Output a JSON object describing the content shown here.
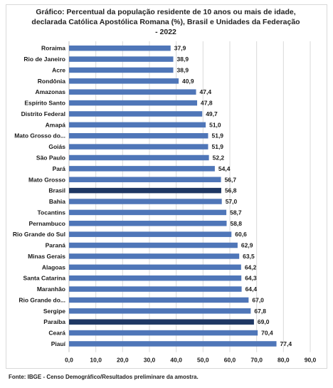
{
  "chart_data": {
    "type": "bar",
    "orientation": "horizontal",
    "title_lines": [
      "Gráfico: Percentual da população residente de 10 anos ou mais de idade,",
      "declarada Católica Apostólica Romana (%), Brasil e Unidades da Federação",
      "- 2022"
    ],
    "categories": [
      "Roraima",
      "Rio de Janeiro",
      "Acre",
      "Rondônia",
      "Amazonas",
      "Espírito Santo",
      "Distrito Federal",
      "Amapá",
      "Mato Grosso do...",
      "Goiás",
      "São Paulo",
      "Pará",
      "Mato Grosso",
      "Brasil",
      "Bahia",
      "Tocantins",
      "Pernambuco",
      "Rio Grande do Sul",
      "Paraná",
      "Minas Gerais",
      "Alagoas",
      "Santa Catarina",
      "Maranhão",
      "Rio Grande do...",
      "Sergipe",
      "Paraíba",
      "Ceará",
      "Piauí"
    ],
    "values": [
      37.9,
      38.9,
      38.9,
      40.9,
      47.4,
      47.8,
      49.7,
      51.0,
      51.9,
      51.9,
      52.2,
      54.4,
      56.7,
      56.8,
      57.0,
      58.7,
      58.8,
      60.6,
      62.9,
      63.5,
      64.2,
      64.3,
      64.4,
      67.0,
      67.8,
      69.0,
      70.4,
      77.4
    ],
    "value_labels": [
      "37,9",
      "38,9",
      "38,9",
      "40,9",
      "47,4",
      "47,8",
      "49,7",
      "51,0",
      "51,9",
      "51,9",
      "52,2",
      "54,4",
      "56,7",
      "56,8",
      "57,0",
      "58,7",
      "58,8",
      "60,6",
      "62,9",
      "63,5",
      "64,2",
      "64,3",
      "64,4",
      "67,0",
      "67,8",
      "69,0",
      "70,4",
      "77,4"
    ],
    "highlighted": [
      "Brasil",
      "Paraíba"
    ],
    "bar_color": "#4f76b8",
    "highlight_color": "#1f3864",
    "xlim": [
      0,
      90
    ],
    "x_ticks": [
      "0,0",
      "10,0",
      "20,0",
      "30,0",
      "40,0",
      "50,0",
      "60,0",
      "70,0",
      "80,0",
      "90,0"
    ],
    "grid": true,
    "legend": "none"
  },
  "source": "Fonte: IBGE - Censo Demográfico/Resultados preliminare da amostra."
}
